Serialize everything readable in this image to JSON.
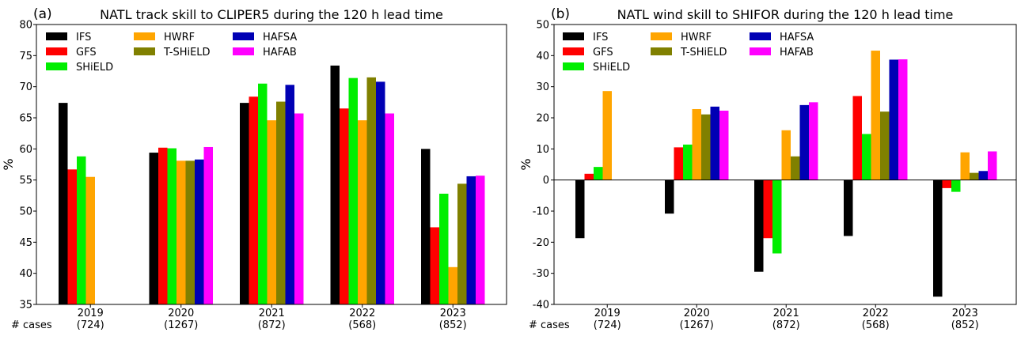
{
  "chart_data": [
    {
      "type": "bar",
      "panel_label": "(a)",
      "title": "NATL track skill to CLIPER5 during the 120 h lead time",
      "ylabel": "%",
      "ylim": [
        35,
        80
      ],
      "yticks": [
        35,
        40,
        45,
        50,
        55,
        60,
        65,
        70,
        75,
        80
      ],
      "cases_label": "# cases",
      "categories": [
        "2019",
        "2020",
        "2021",
        "2022",
        "2023"
      ],
      "case_counts": [
        "(724)",
        "(1267)",
        "(872)",
        "(568)",
        "(852)"
      ],
      "legend_position": "top-left",
      "grid": false,
      "series": [
        {
          "name": "IFS",
          "color": "#000000",
          "values": [
            67.4,
            59.4,
            67.4,
            73.4,
            60.0
          ]
        },
        {
          "name": "GFS",
          "color": "#ff0000",
          "values": [
            56.7,
            60.2,
            68.4,
            66.5,
            47.4
          ]
        },
        {
          "name": "SHiELD",
          "color": "#00ee00",
          "values": [
            58.8,
            60.1,
            70.5,
            71.4,
            52.8
          ]
        },
        {
          "name": "HWRF",
          "color": "#ffa500",
          "values": [
            55.5,
            58.1,
            64.6,
            64.6,
            41.0
          ]
        },
        {
          "name": "T-SHiELD",
          "color": "#808000",
          "values": [
            null,
            58.1,
            67.6,
            71.5,
            54.4
          ]
        },
        {
          "name": "HAFSA",
          "color": "#0000b4",
          "values": [
            null,
            58.3,
            70.3,
            70.8,
            55.6
          ]
        },
        {
          "name": "HAFAB",
          "color": "#ff00ff",
          "values": [
            null,
            60.3,
            65.7,
            65.7,
            55.7
          ]
        }
      ]
    },
    {
      "type": "bar",
      "panel_label": "(b)",
      "title": "NATL wind skill to SHIFOR during the 120 h lead time",
      "ylabel": "%",
      "ylim": [
        -40,
        50
      ],
      "yticks": [
        -40,
        -30,
        -20,
        -10,
        0,
        10,
        20,
        30,
        40,
        50
      ],
      "cases_label": "# cases",
      "categories": [
        "2019",
        "2020",
        "2021",
        "2022",
        "2023"
      ],
      "case_counts": [
        "(724)",
        "(1267)",
        "(872)",
        "(568)",
        "(852)"
      ],
      "legend_position": "top-left",
      "grid": false,
      "zero_line": true,
      "series": [
        {
          "name": "IFS",
          "color": "#000000",
          "values": [
            -18.7,
            -10.8,
            -29.5,
            -18.0,
            -37.5
          ]
        },
        {
          "name": "GFS",
          "color": "#ff0000",
          "values": [
            2.0,
            10.5,
            -18.7,
            27.0,
            -2.6
          ]
        },
        {
          "name": "SHiELD",
          "color": "#00ee00",
          "values": [
            4.2,
            11.4,
            -23.6,
            14.8,
            -3.8
          ]
        },
        {
          "name": "HWRF",
          "color": "#ffa500",
          "values": [
            28.6,
            22.8,
            16.0,
            41.6,
            8.9
          ]
        },
        {
          "name": "T-SHiELD",
          "color": "#808000",
          "values": [
            null,
            21.1,
            7.6,
            22.0,
            2.3
          ]
        },
        {
          "name": "HAFSA",
          "color": "#0000b4",
          "values": [
            null,
            23.6,
            24.1,
            38.7,
            2.9
          ]
        },
        {
          "name": "HAFAB",
          "color": "#ff00ff",
          "values": [
            null,
            22.3,
            25.0,
            38.8,
            9.2
          ]
        }
      ]
    }
  ]
}
